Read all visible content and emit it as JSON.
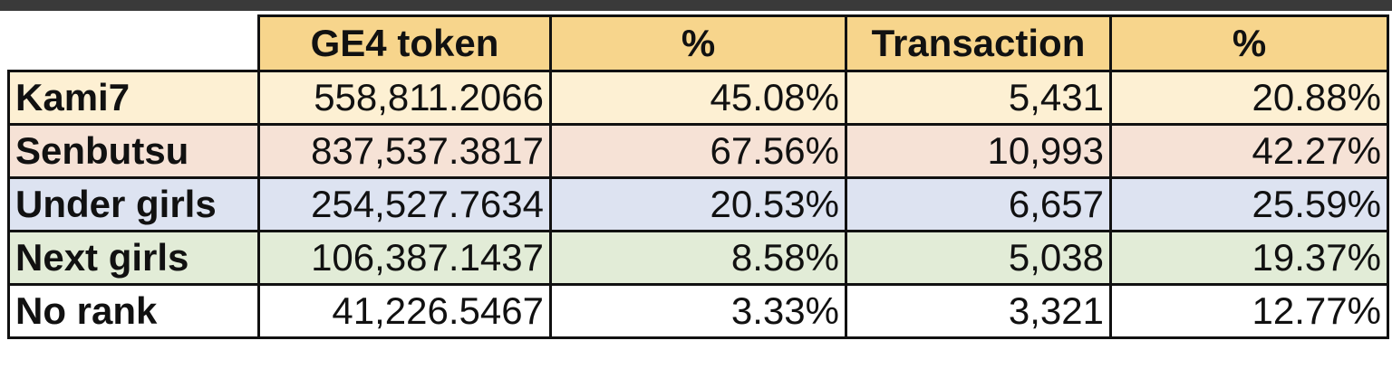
{
  "table": {
    "headers": [
      "",
      "GE4 token",
      "%",
      "Transaction",
      "%"
    ],
    "rows": [
      {
        "label": "Kami7",
        "token": "558,811.2066",
        "token_pct": "45.08%",
        "transactions": "5,431",
        "tx_pct": "20.88%"
      },
      {
        "label": "Senbutsu",
        "token": "837,537.3817",
        "token_pct": "67.56%",
        "transactions": "10,993",
        "tx_pct": "42.27%"
      },
      {
        "label": "Under girls",
        "token": "254,527.7634",
        "token_pct": "20.53%",
        "transactions": "6,657",
        "tx_pct": "25.59%"
      },
      {
        "label": "Next girls",
        "token": "106,387.1437",
        "token_pct": "8.58%",
        "transactions": "5,038",
        "tx_pct": "19.37%"
      },
      {
        "label": "No rank",
        "token": "41,226.5467",
        "token_pct": "3.33%",
        "transactions": "3,321",
        "tx_pct": "12.77%"
      }
    ]
  },
  "colors": {
    "header": "#f7d58c",
    "kami7": "#fdf0d3",
    "senbutsu": "#f6e2d6",
    "under_girls": "#dde3f1",
    "next_girls": "#e2ecd7",
    "no_rank": "#ffffff"
  }
}
